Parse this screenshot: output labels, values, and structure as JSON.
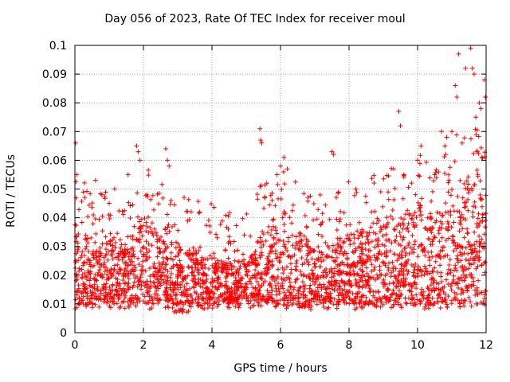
{
  "chart_data": {
    "type": "scatter",
    "title": "Day 056 of 2023, Rate Of TEC Index for receiver moul",
    "xlabel": "GPS time / hours",
    "ylabel": "ROTI / TECUs",
    "xlim": [
      0,
      12
    ],
    "ylim": [
      0,
      0.1
    ],
    "x_ticks": [
      "0",
      "2",
      "4",
      "6",
      "8",
      "10",
      "12"
    ],
    "y_ticks": [
      "0",
      "0.01",
      "0.02",
      "0.03",
      "0.04",
      "0.05",
      "0.06",
      "0.07",
      "0.08",
      "0.09",
      "0.1"
    ],
    "grid": true,
    "marker": "+",
    "color": "#ff0000",
    "series": [
      {
        "name": "ROTI",
        "profile_hours": [
          0,
          0.5,
          1,
          1.5,
          2,
          2.5,
          3,
          3.5,
          4,
          4.5,
          5,
          5.5,
          6,
          6.5,
          7,
          7.5,
          8,
          8.5,
          9,
          9.5,
          10,
          10.5,
          11,
          11.5,
          12
        ],
        "typical_low": [
          0.01,
          0.01,
          0.01,
          0.01,
          0.01,
          0.01,
          0.008,
          0.009,
          0.01,
          0.01,
          0.01,
          0.01,
          0.01,
          0.01,
          0.01,
          0.01,
          0.01,
          0.01,
          0.01,
          0.01,
          0.01,
          0.01,
          0.01,
          0.01,
          0.01
        ],
        "typical_high": [
          0.04,
          0.03,
          0.035,
          0.03,
          0.04,
          0.035,
          0.03,
          0.028,
          0.028,
          0.025,
          0.025,
          0.035,
          0.04,
          0.035,
          0.03,
          0.03,
          0.035,
          0.035,
          0.04,
          0.04,
          0.045,
          0.04,
          0.05,
          0.055,
          0.05
        ],
        "outliers": [
          [
            0.02,
            0.066
          ],
          [
            0.05,
            0.055
          ],
          [
            0.6,
            0.053
          ],
          [
            1.0,
            0.045
          ],
          [
            1.55,
            0.055
          ],
          [
            1.8,
            0.065
          ],
          [
            1.85,
            0.063
          ],
          [
            1.9,
            0.06
          ],
          [
            2.1,
            0.048
          ],
          [
            2.65,
            0.064
          ],
          [
            2.7,
            0.06
          ],
          [
            2.75,
            0.058
          ],
          [
            5.4,
            0.071
          ],
          [
            5.42,
            0.067
          ],
          [
            5.45,
            0.066
          ],
          [
            5.6,
            0.052
          ],
          [
            5.9,
            0.055
          ],
          [
            6.0,
            0.058
          ],
          [
            6.1,
            0.061
          ],
          [
            6.2,
            0.057
          ],
          [
            7.5,
            0.063
          ],
          [
            7.55,
            0.062
          ],
          [
            8.2,
            0.05
          ],
          [
            9.3,
            0.057
          ],
          [
            9.45,
            0.077
          ],
          [
            9.5,
            0.072
          ],
          [
            9.6,
            0.055
          ],
          [
            10.0,
            0.06
          ],
          [
            10.1,
            0.065
          ],
          [
            10.5,
            0.055
          ],
          [
            10.7,
            0.07
          ],
          [
            10.8,
            0.065
          ],
          [
            10.85,
            0.068
          ],
          [
            11.0,
            0.07
          ],
          [
            11.1,
            0.086
          ],
          [
            11.15,
            0.082
          ],
          [
            11.2,
            0.097
          ],
          [
            11.3,
            0.066
          ],
          [
            11.4,
            0.092
          ],
          [
            11.55,
            0.099
          ],
          [
            11.6,
            0.092
          ],
          [
            11.65,
            0.09
          ],
          [
            11.7,
            0.075
          ],
          [
            11.8,
            0.08
          ],
          [
            11.85,
            0.078
          ],
          [
            11.95,
            0.088
          ],
          [
            11.98,
            0.082
          ]
        ]
      }
    ]
  }
}
